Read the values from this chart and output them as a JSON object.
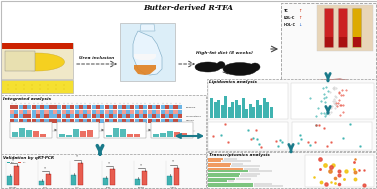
{
  "bg_color": "#ffffff",
  "title": "Butter-derived R-TFA",
  "subtitle_left": "Urea inclusion",
  "subtitle_right": "High-fat diet (8 weeks)",
  "section_labels": {
    "integrated": "Integrated analysis",
    "lipidomics": "Lipidomics analysis",
    "validation": "Validation by qRT-PCR",
    "transcriptomics": "Transcriptomics analysis"
  },
  "blood_markers": [
    "TC",
    "LDL-C",
    "HDL-C"
  ],
  "liver_markers": [
    "TC",
    "ALT",
    "TG"
  ],
  "dashed_color": "#999999",
  "arrow_teal": "#1a7a8a",
  "liver_red": "#cc1100",
  "hm1_colors": [
    "#c0392b",
    "#c0392b",
    "#5dade2",
    "#c0392b",
    "#5dade2",
    "#c0392b",
    "#5dade2",
    "#c0392b",
    "#5dade2",
    "#c0392b",
    "#c0392b",
    "#5dade2",
    "#c0392b",
    "#5dade2",
    "#c0392b",
    "#5dade2",
    "#c0392b",
    "#5dade2",
    "#c0392b",
    "#5dade2",
    "#c0392b",
    "#5dade2",
    "#c0392b",
    "#5dade2",
    "#c0392b",
    "#5dade2",
    "#c0392b",
    "#5dade2",
    "#c0392b",
    "#5dade2",
    "#c0392b",
    "#5dade2",
    "#c0392b",
    "#5dade2",
    "#c0392b",
    "#5dade2",
    "#c0392b",
    "#5dade2",
    "#c0392b",
    "#5dade2"
  ],
  "hm2_colors": [
    "#5dade2",
    "#c0392b",
    "#5dade2",
    "#c0392b",
    "#c0392b",
    "#5dade2",
    "#c0392b",
    "#5dade2",
    "#c0392b",
    "#5dade2",
    "#5dade2",
    "#c0392b",
    "#5dade2",
    "#c0392b",
    "#5dade2",
    "#c0392b",
    "#5dade2",
    "#c0392b",
    "#5dade2",
    "#c0392b",
    "#5dade2",
    "#c0392b",
    "#5dade2",
    "#c0392b",
    "#5dade2",
    "#c0392b",
    "#5dade2",
    "#c0392b",
    "#5dade2",
    "#c0392b",
    "#5dade2",
    "#c0392b",
    "#5dade2",
    "#c0392b",
    "#5dade2",
    "#c0392b",
    "#5dade2",
    "#c0392b",
    "#5dade2",
    "#c0392b"
  ],
  "hm3_colors": [
    "#c0392b",
    "#5dade2",
    "#c0392b",
    "#5dade2",
    "#c0392b",
    "#c0392b",
    "#5dade2",
    "#c0392b",
    "#5dade2",
    "#c0392b",
    "#c0392b",
    "#5dade2",
    "#c0392b",
    "#5dade2",
    "#c0392b",
    "#5dade2",
    "#c0392b",
    "#5dade2",
    "#c0392b",
    "#5dade2",
    "#c0392b",
    "#5dade2",
    "#c0392b",
    "#5dade2",
    "#c0392b",
    "#5dade2",
    "#c0392b",
    "#5dade2",
    "#c0392b",
    "#5dade2",
    "#c0392b",
    "#5dade2",
    "#c0392b",
    "#5dade2",
    "#c0392b",
    "#5dade2",
    "#c0392b",
    "#5dade2",
    "#c0392b",
    "#5dade2"
  ],
  "hm_pink1": [
    "#f1948a",
    "#5dade2",
    "#f1948a",
    "#5dade2",
    "#f1948a",
    "#5dade2",
    "#f1948a",
    "#5dade2",
    "#f1948a",
    "#5dade2",
    "#f1948a",
    "#5dade2",
    "#f1948a",
    "#5dade2",
    "#f1948a",
    "#5dade2",
    "#f1948a",
    "#5dade2",
    "#f1948a",
    "#5dade2",
    "#f1948a",
    "#5dade2",
    "#f1948a",
    "#5dade2",
    "#f1948a",
    "#5dade2",
    "#f1948a",
    "#5dade2",
    "#f1948a",
    "#5dade2",
    "#f1948a",
    "#5dade2",
    "#f1948a",
    "#5dade2",
    "#f1948a",
    "#5dade2",
    "#f1948a",
    "#5dade2",
    "#f1948a",
    "#5dade2"
  ],
  "lip_bar_h": [
    22,
    18,
    20,
    15,
    25,
    12,
    18,
    20,
    15,
    22,
    10,
    16,
    12,
    20,
    15,
    22,
    18,
    12,
    20,
    15
  ],
  "lip_bar_color": "#2aaba8",
  "teal_dark": "#2aaba8",
  "red_bar": "#e74c3c",
  "val_ctrl_color": "#2aaba8",
  "val_tfa_color": "#e74c3c",
  "trans_green": "#66bb6a",
  "trans_orange": "#ef8a47",
  "scatter_red": "#e74c3c",
  "scatter_orange": "#e67e22",
  "scatter_yellow": "#f1c40f"
}
